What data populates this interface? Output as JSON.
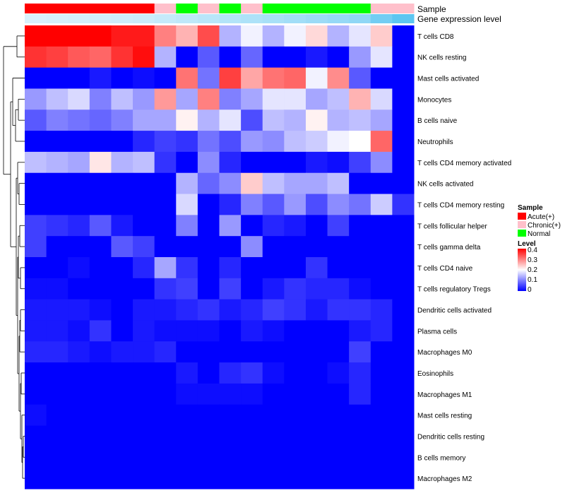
{
  "chart_data": {
    "type": "heatmap",
    "annotation_tracks": [
      "Sample",
      "Gene expression level"
    ],
    "sample_groups": [
      "Acute(+)",
      "Acute(+)",
      "Acute(+)",
      "Acute(+)",
      "Acute(+)",
      "Acute(+)",
      "Chronic(+)",
      "Normal",
      "Chronic(+)",
      "Normal",
      "Chronic(+)",
      "Normal",
      "Normal",
      "Normal",
      "Normal",
      "Normal",
      "Chronic(+)",
      "Chronic(+)"
    ],
    "expression_level": [
      0.1,
      0.12,
      0.14,
      0.16,
      0.18,
      0.2,
      0.24,
      0.28,
      0.32,
      0.36,
      0.4,
      0.44,
      0.48,
      0.52,
      0.56,
      0.6,
      0.8,
      0.95
    ],
    "rows": [
      "T cells CD8",
      "NK cells resting",
      "Mast cells activated",
      "Monocytes",
      "B cells naive",
      "Neutrophils",
      "T cells CD4 memory activated",
      "NK cells activated",
      "T cells CD4 memory resting",
      "T cells follicular helper",
      "T cells gamma delta",
      "T cells CD4 naive",
      "T cells regulatory  Tregs",
      "Dendritic cells activated",
      "Plasma cells",
      "Macrophages M0",
      "Eosinophils",
      "Macrophages M1",
      "Mast cells resting",
      "Dendritic cells resting",
      "B cells memory",
      "Macrophages M2"
    ],
    "values": [
      [
        0.4,
        0.4,
        0.4,
        0.4,
        0.38,
        0.38,
        0.3,
        0.26,
        0.34,
        0.14,
        0.19,
        0.14,
        0.19,
        0.23,
        0.14,
        0.18,
        0.24,
        0.0
      ],
      [
        0.36,
        0.35,
        0.33,
        0.32,
        0.36,
        0.39,
        0.14,
        0.0,
        0.07,
        0.0,
        0.08,
        0.0,
        0.0,
        0.02,
        0.0,
        0.12,
        0.18,
        0.0
      ],
      [
        0.0,
        0.0,
        0.0,
        0.02,
        0.0,
        0.01,
        0.0,
        0.31,
        0.09,
        0.35,
        0.27,
        0.31,
        0.32,
        0.19,
        0.29,
        0.07,
        0.0,
        0.0
      ],
      [
        0.12,
        0.15,
        0.17,
        0.1,
        0.15,
        0.12,
        0.28,
        0.13,
        0.3,
        0.1,
        0.13,
        0.18,
        0.18,
        0.13,
        0.15,
        0.26,
        0.17,
        0.0
      ],
      [
        0.07,
        0.1,
        0.09,
        0.08,
        0.1,
        0.13,
        0.13,
        0.21,
        0.14,
        0.18,
        0.06,
        0.15,
        0.14,
        0.21,
        0.14,
        0.15,
        0.13,
        0.0
      ],
      [
        0.0,
        0.0,
        0.0,
        0.0,
        0.0,
        0.03,
        0.05,
        0.04,
        0.09,
        0.06,
        0.12,
        0.11,
        0.15,
        0.16,
        0.19,
        0.2,
        0.32,
        0.0
      ],
      [
        0.15,
        0.14,
        0.13,
        0.22,
        0.14,
        0.15,
        0.04,
        0.0,
        0.11,
        0.03,
        0.0,
        0.0,
        0.0,
        0.02,
        0.01,
        0.05,
        0.11,
        0.0
      ],
      [
        0.0,
        0.0,
        0.0,
        0.0,
        0.0,
        0.0,
        0.0,
        0.14,
        0.08,
        0.11,
        0.24,
        0.15,
        0.13,
        0.13,
        0.15,
        0.0,
        0.0,
        0.0
      ],
      [
        0.0,
        0.0,
        0.0,
        0.0,
        0.0,
        0.0,
        0.0,
        0.17,
        0.0,
        0.03,
        0.1,
        0.07,
        0.12,
        0.06,
        0.11,
        0.09,
        0.16,
        0.04
      ],
      [
        0.05,
        0.04,
        0.03,
        0.07,
        0.02,
        0.0,
        0.0,
        0.1,
        0.0,
        0.12,
        0.0,
        0.03,
        0.02,
        0.0,
        0.05,
        0.0,
        0.0,
        0.0
      ],
      [
        0.05,
        0.0,
        0.0,
        0.0,
        0.07,
        0.05,
        0.0,
        0.0,
        0.0,
        0.0,
        0.11,
        0.0,
        0.0,
        0.0,
        0.0,
        0.0,
        0.0,
        0.0
      ],
      [
        0.0,
        0.0,
        0.01,
        0.0,
        0.0,
        0.03,
        0.13,
        0.04,
        0.0,
        0.03,
        0.0,
        0.0,
        0.0,
        0.04,
        0.0,
        0.0,
        0.0,
        0.0
      ],
      [
        0.01,
        0.01,
        0.0,
        0.0,
        0.0,
        0.0,
        0.04,
        0.05,
        0.0,
        0.05,
        0.0,
        0.02,
        0.04,
        0.03,
        0.03,
        0.01,
        0.0,
        0.0
      ],
      [
        0.02,
        0.02,
        0.02,
        0.01,
        0.0,
        0.02,
        0.02,
        0.03,
        0.04,
        0.02,
        0.03,
        0.05,
        0.04,
        0.02,
        0.04,
        0.04,
        0.03,
        0.0
      ],
      [
        0.02,
        0.02,
        0.01,
        0.04,
        0.0,
        0.02,
        0.01,
        0.01,
        0.01,
        0.0,
        0.02,
        0.01,
        0.0,
        0.0,
        0.0,
        0.02,
        0.03,
        0.0
      ],
      [
        0.03,
        0.03,
        0.02,
        0.01,
        0.02,
        0.02,
        0.03,
        0.0,
        0.0,
        0.0,
        0.0,
        0.0,
        0.0,
        0.0,
        0.0,
        0.05,
        0.0,
        0.0
      ],
      [
        0.0,
        0.0,
        0.0,
        0.0,
        0.0,
        0.0,
        0.0,
        0.02,
        0.0,
        0.03,
        0.04,
        0.01,
        0.0,
        0.0,
        0.01,
        0.03,
        0.0,
        0.0
      ],
      [
        0.0,
        0.0,
        0.0,
        0.0,
        0.0,
        0.0,
        0.0,
        0.01,
        0.01,
        0.01,
        0.01,
        0.0,
        0.0,
        0.0,
        0.0,
        0.03,
        0.0,
        0.0
      ],
      [
        0.01,
        0.0,
        0.0,
        0.0,
        0.0,
        0.0,
        0.0,
        0.0,
        0.0,
        0.0,
        0.0,
        0.0,
        0.0,
        0.0,
        0.0,
        0.0,
        0.0,
        0.0
      ],
      [
        0.0,
        0.0,
        0.0,
        0.0,
        0.0,
        0.0,
        0.0,
        0.0,
        0.0,
        0.0,
        0.0,
        0.0,
        0.0,
        0.0,
        0.0,
        0.0,
        0.0,
        0.0
      ],
      [
        0.0,
        0.0,
        0.0,
        0.0,
        0.0,
        0.0,
        0.0,
        0.0,
        0.0,
        0.0,
        0.0,
        0.0,
        0.0,
        0.0,
        0.0,
        0.0,
        0.0,
        0.0
      ],
      [
        0.0,
        0.0,
        0.0,
        0.0,
        0.0,
        0.0,
        0.0,
        0.0,
        0.0,
        0.0,
        0.0,
        0.0,
        0.0,
        0.0,
        0.0,
        0.0,
        0.0,
        0.0
      ]
    ],
    "color_scale": {
      "min": 0,
      "mid": 0.2,
      "max": 0.4,
      "low": "#0000ff",
      "mid_color": "#ffffff",
      "high": "#ff0000"
    },
    "expression_scale": {
      "low": "#e8f6fd",
      "high": "#56c3f0"
    },
    "legend": {
      "sample_title": "Sample",
      "sample_entries": [
        {
          "label": "Acute(+)",
          "color": "#ff0000"
        },
        {
          "label": "Chronic(+)",
          "color": "#ffc0cb"
        },
        {
          "label": "Normal",
          "color": "#00ff00"
        }
      ],
      "level_title": "Level",
      "level_ticks": [
        "0.4",
        "0.3",
        "0.2",
        "0.1",
        "0"
      ],
      "placement": "right"
    },
    "row_dendrogram": "left"
  }
}
